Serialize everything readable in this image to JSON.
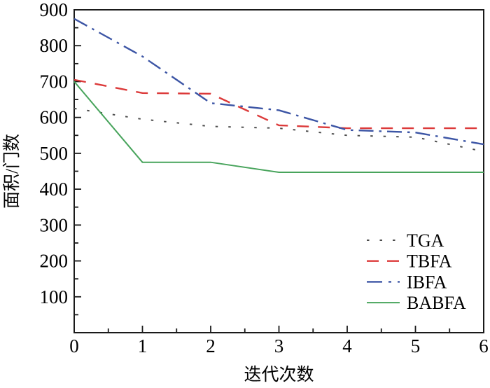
{
  "chart_data": {
    "type": "line",
    "title": "",
    "xlabel": "迭代次数",
    "ylabel": "面积/门数",
    "xlim": [
      0,
      6
    ],
    "ylim": [
      0,
      900
    ],
    "x": [
      0,
      1,
      2,
      3,
      4,
      5,
      6
    ],
    "x_major_ticks": [
      0,
      1,
      2,
      3,
      4,
      5,
      6
    ],
    "y_major_ticks": [
      100,
      200,
      300,
      400,
      500,
      600,
      700,
      800,
      900
    ],
    "x_minor_step": 0.5,
    "y_minor_step": 50,
    "grid": false,
    "frame": "full-box",
    "legend_position": "inside-lower-right",
    "axis_color": "#1a1a1a",
    "series": [
      {
        "name": "TGA",
        "style": "dotted",
        "color": "#4d4d4d",
        "values": [
          625,
          595,
          575,
          570,
          550,
          545,
          505
        ]
      },
      {
        "name": "TBFA",
        "style": "dashed",
        "color": "#dc3a3a",
        "values": [
          705,
          668,
          666,
          578,
          570,
          570,
          570
        ]
      },
      {
        "name": "IBFA",
        "style": "dashdot",
        "color": "#3c55a5",
        "values": [
          875,
          770,
          640,
          620,
          565,
          558,
          525
        ]
      },
      {
        "name": "BABFA",
        "style": "solid",
        "color": "#48a45c",
        "values": [
          700,
          475,
          475,
          447,
          447,
          447,
          447
        ]
      }
    ]
  }
}
